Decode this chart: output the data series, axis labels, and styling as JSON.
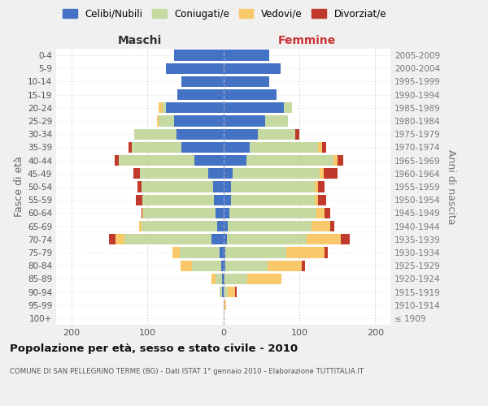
{
  "age_groups": [
    "100+",
    "95-99",
    "90-94",
    "85-89",
    "80-84",
    "75-79",
    "70-74",
    "65-69",
    "60-64",
    "55-59",
    "50-54",
    "45-49",
    "40-44",
    "35-39",
    "30-34",
    "25-29",
    "20-24",
    "15-19",
    "10-14",
    "5-9",
    "0-4"
  ],
  "birth_years": [
    "≤ 1909",
    "1910-1914",
    "1915-1919",
    "1920-1924",
    "1925-1929",
    "1930-1934",
    "1935-1939",
    "1940-1944",
    "1945-1949",
    "1950-1954",
    "1955-1959",
    "1960-1964",
    "1965-1969",
    "1970-1974",
    "1975-1979",
    "1980-1984",
    "1985-1989",
    "1990-1994",
    "1995-1999",
    "2000-2004",
    "2005-2009"
  ],
  "maschi": {
    "celibi": [
      0,
      0,
      2,
      2,
      3,
      5,
      15,
      8,
      10,
      12,
      13,
      20,
      38,
      55,
      62,
      65,
      75,
      60,
      55,
      75,
      65
    ],
    "coniugati": [
      0,
      0,
      3,
      8,
      38,
      52,
      115,
      100,
      95,
      95,
      95,
      90,
      100,
      65,
      55,
      20,
      5,
      0,
      0,
      0,
      0
    ],
    "vedovi": [
      0,
      0,
      0,
      5,
      15,
      10,
      12,
      3,
      1,
      0,
      0,
      0,
      0,
      0,
      0,
      2,
      5,
      0,
      0,
      0,
      0
    ],
    "divorziati": [
      0,
      0,
      0,
      0,
      0,
      0,
      8,
      0,
      2,
      8,
      5,
      8,
      5,
      5,
      0,
      0,
      0,
      0,
      0,
      0,
      0
    ]
  },
  "femmine": {
    "nubili": [
      0,
      0,
      1,
      2,
      3,
      3,
      5,
      6,
      8,
      10,
      10,
      12,
      30,
      35,
      45,
      55,
      80,
      70,
      60,
      75,
      60
    ],
    "coniugate": [
      0,
      2,
      5,
      30,
      55,
      80,
      105,
      110,
      115,
      110,
      110,
      115,
      115,
      90,
      50,
      30,
      10,
      0,
      0,
      0,
      0
    ],
    "vedove": [
      0,
      2,
      10,
      45,
      45,
      50,
      45,
      25,
      10,
      5,
      5,
      5,
      5,
      5,
      0,
      0,
      0,
      0,
      0,
      0,
      0
    ],
    "divorziate": [
      0,
      0,
      2,
      0,
      5,
      5,
      12,
      5,
      8,
      10,
      8,
      18,
      8,
      5,
      5,
      0,
      0,
      0,
      0,
      0,
      0
    ]
  },
  "colors": {
    "celibi": "#4472C4",
    "coniugati": "#c5d9a0",
    "vedovi": "#f9c86a",
    "divorziati": "#c0392b"
  },
  "xlim": 220,
  "title": "Popolazione per età, sesso e stato civile - 2010",
  "subtitle": "COMUNE DI SAN PELLEGRINO TERME (BG) - Dati ISTAT 1° gennaio 2010 - Elaborazione TUTTITALIA.IT",
  "ylabel_left": "Fasce di età",
  "ylabel_right": "Anni di nascita",
  "xlabel_maschi": "Maschi",
  "xlabel_femmine": "Femmine",
  "background_color": "#f0f0f0",
  "plot_bg": "#ffffff",
  "legend_labels": [
    "Celibi/Nubili",
    "Coniugati/e",
    "Vedovi/e",
    "Divorziat/e"
  ]
}
